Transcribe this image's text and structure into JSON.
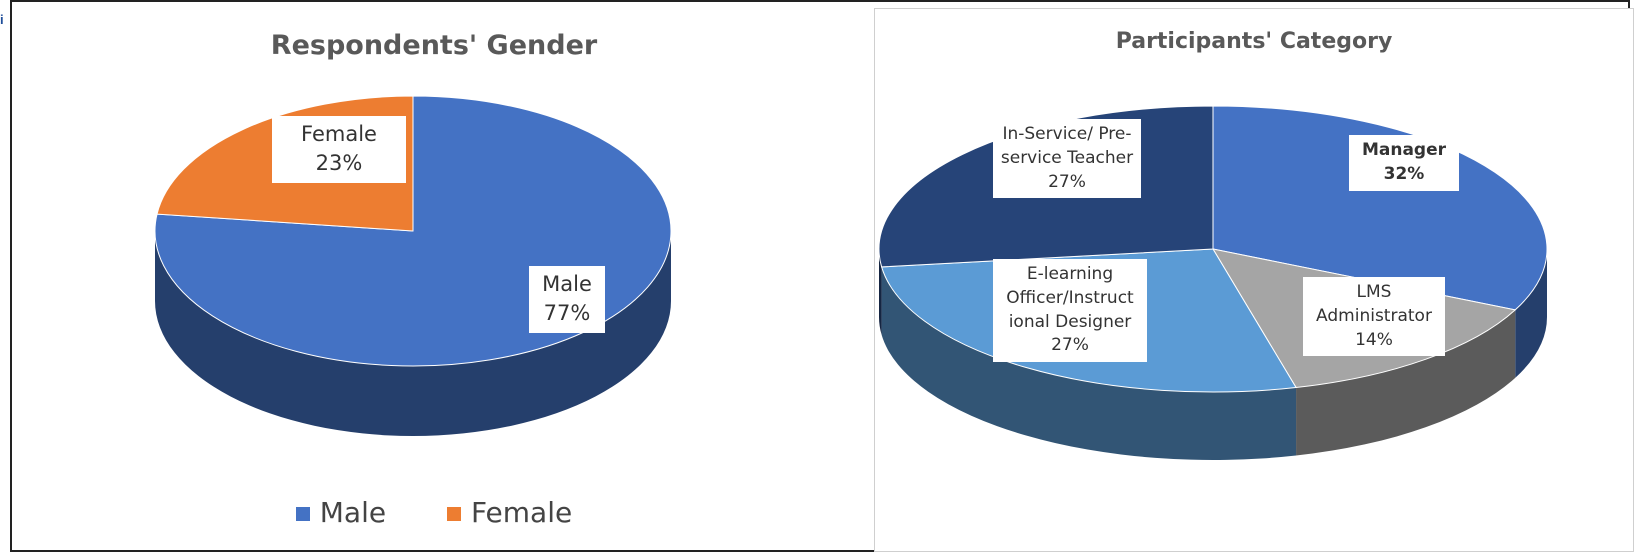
{
  "edge_mark": "i",
  "chart_data": [
    {
      "type": "pie",
      "title": "Respondents' Gender",
      "slices": [
        {
          "label": "Male",
          "value": 77,
          "value_text": "77%",
          "color": "#4472c4"
        },
        {
          "label": "Female",
          "value": 23,
          "value_text": "23%",
          "color": "#ed7d31"
        }
      ],
      "legend": {
        "position": "bottom",
        "entries": [
          "Male",
          "Female"
        ]
      },
      "style": "3d"
    },
    {
      "type": "pie",
      "title": "Participants' Category",
      "slices": [
        {
          "label": "Manager",
          "value": 32,
          "value_text": "32%",
          "color": "#4472c4"
        },
        {
          "label": "LMS Administrator",
          "label_lines": [
            "LMS",
            "Administrator"
          ],
          "value": 14,
          "value_text": "14%",
          "color": "#a5a5a5"
        },
        {
          "label": "E-learning Officer/Instructional Designer",
          "label_lines": [
            "E-learning",
            "Officer/Instruct",
            "ional Designer"
          ],
          "value": 27,
          "value_text": "27%",
          "color": "#5b9bd5"
        },
        {
          "label": "In-Service/ Pre-service Teacher",
          "label_lines": [
            "In-Service/ Pre-",
            "service Teacher"
          ],
          "value": 27,
          "value_text": "27%",
          "color": "#264478"
        }
      ],
      "legend": {
        "position": "none"
      },
      "style": "3d"
    }
  ]
}
